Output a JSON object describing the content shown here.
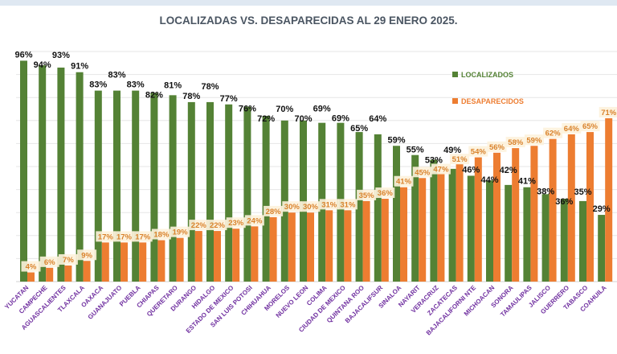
{
  "chart_data": {
    "type": "bar",
    "title": "LOCALIZADAS VS. DESAPARECIDAS AL 29 ENERO 2025.",
    "categories": [
      "YUCATAN",
      "CAMPECHE",
      "AGUASCALIENTES",
      "TLAXCALA",
      "OAXACA",
      "GUANAJUATO",
      "PUEBLA",
      "CHIAPAS",
      "QUERETARO",
      "DURANGO",
      "HIDALGO",
      "ESTADO DE MEXICO",
      "SAN LUIS POTOSI",
      "CHIHUAHUA",
      "MORELOS",
      "NUEVO LEON",
      "COLIMA",
      "CIUDAD DE MEXICO",
      "QUINTANA ROO",
      "BAJACALIFSUR",
      "SINALOA",
      "NAYARIT",
      "VERACRUZ",
      "ZACATECAS",
      "BAJACALIFORNI NTE",
      "MICHOACAN",
      "SONORA",
      "TAMAULIPAS",
      "JALISCO",
      "GUERRERO",
      "TABASCO",
      "COAHUILA"
    ],
    "series": [
      {
        "name": "LOCALIZADOS",
        "color": "#548235",
        "values": [
          96,
          94,
          93,
          91,
          83,
          83,
          83,
          82,
          81,
          78,
          78,
          77,
          76,
          72,
          70,
          70,
          69,
          69,
          65,
          64,
          59,
          55,
          53,
          49,
          46,
          44,
          42,
          41,
          38,
          36,
          35,
          29
        ]
      },
      {
        "name": "DESAPARECIDOS",
        "color": "#ed7d31",
        "values": [
          4,
          6,
          7,
          9,
          17,
          17,
          17,
          18,
          19,
          22,
          22,
          23,
          24,
          28,
          30,
          30,
          31,
          31,
          35,
          36,
          41,
          45,
          47,
          51,
          54,
          56,
          58,
          59,
          62,
          64,
          65,
          71
        ]
      }
    ],
    "ylim": [
      0,
      100
    ],
    "value_suffix": "%",
    "grid": true,
    "legend": "right",
    "category_label_color": "#7030a0"
  }
}
